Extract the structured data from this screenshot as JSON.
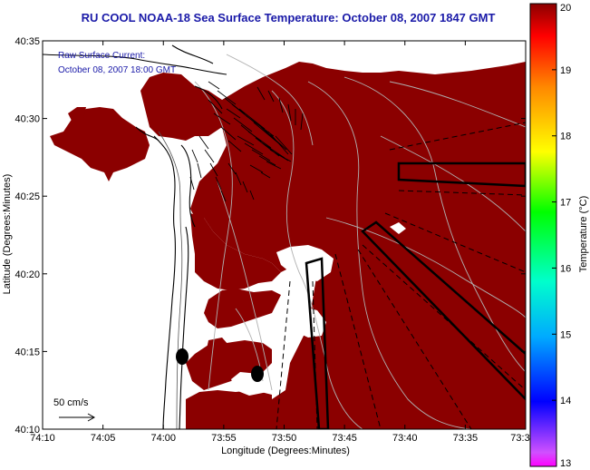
{
  "title": "RU COOL  NOAA-18  Sea Surface Temperature:  October 08, 2007 1847 GMT",
  "current_legend": {
    "line1": "Raw Surface Current:",
    "line2": "October 08, 2007 18:00 GMT"
  },
  "scale_label": "50 cm/s",
  "x_axis": {
    "label": "Longitude (Degrees:Minutes)",
    "ticks": [
      "74:10",
      "74:05",
      "74:00",
      "73:55",
      "73:50",
      "73:45",
      "73:40",
      "73:35",
      "73:3"
    ]
  },
  "y_axis": {
    "label": "Latitude (Degrees:Minutes)",
    "ticks": [
      "40:35",
      "40:30",
      "40:25",
      "40:20",
      "40:15",
      "40:10"
    ]
  },
  "colorbar": {
    "label": "Temperature (°C)",
    "ticks": [
      "20",
      "19",
      "18",
      "17",
      "16",
      "15",
      "14",
      "13"
    ],
    "range": [
      13,
      20
    ],
    "colors": [
      "#ff00ff",
      "#0000ff",
      "#00ffff",
      "#00ff00",
      "#ffff00",
      "#ff8800",
      "#ff0000",
      "#800000"
    ]
  },
  "colors": {
    "sst": "#8b0000",
    "land": "#ffffff",
    "title": "#1a1aa8"
  }
}
